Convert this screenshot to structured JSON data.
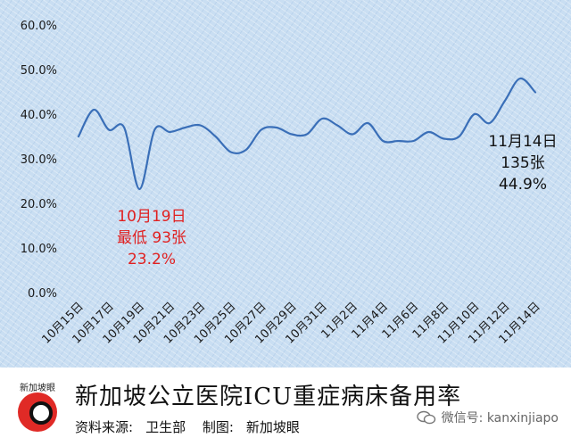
{
  "chart_data": {
    "type": "line",
    "y_ticks": [
      "0.0%",
      "10.0%",
      "20.0%",
      "30.0%",
      "40.0%",
      "50.0%",
      "60.0%"
    ],
    "ylim": [
      0,
      60
    ],
    "x_tick_labels": [
      "10月15日",
      "10月17日",
      "10月19日",
      "10月21日",
      "10月23日",
      "10月25日",
      "10月27日",
      "10月29日",
      "10月31日",
      "11月2日",
      "11月4日",
      "11月6日",
      "11月8日",
      "11月10日",
      "11月12日",
      "11月14日"
    ],
    "categories": [
      "10/15",
      "10/16",
      "10/17",
      "10/18",
      "10/19",
      "10/20",
      "10/21",
      "10/22",
      "10/23",
      "10/24",
      "10/25",
      "10/26",
      "10/27",
      "10/28",
      "10/29",
      "10/30",
      "10/31",
      "11/1",
      "11/2",
      "11/3",
      "11/4",
      "11/5",
      "11/6",
      "11/7",
      "11/8",
      "11/9",
      "11/10",
      "11/11",
      "11/12",
      "11/13",
      "11/14"
    ],
    "series": [
      {
        "values": [
          35.0,
          41.0,
          36.5,
          37.0,
          23.2,
          36.5,
          36.0,
          37.0,
          37.5,
          35.0,
          31.5,
          32.0,
          36.5,
          37.0,
          35.5,
          35.5,
          39.0,
          37.5,
          35.5,
          38.0,
          34.0,
          34.0,
          34.0,
          36.0,
          34.5,
          35.0,
          40.0,
          38.0,
          43.0,
          48.0,
          44.9
        ],
        "color": "#3a6fb8"
      }
    ],
    "annotations": [
      {
        "lines": [
          "10月19日",
          "最低 93张",
          "23.2%"
        ],
        "color": "#e02020"
      },
      {
        "lines": [
          "11月14日",
          "135张",
          "44.9%"
        ],
        "color": "#111111"
      }
    ],
    "grid": false,
    "legend": "none"
  },
  "footer": {
    "logo_text": "新加坡眼",
    "title": "新加坡公立医院ICU重症病床备用率",
    "source_label": "资料来源:",
    "source_value": "卫生部",
    "chart_by_label": "制图:",
    "chart_by_value": "新加坡眼",
    "wechat": "微信号: kanxinjiapo"
  }
}
